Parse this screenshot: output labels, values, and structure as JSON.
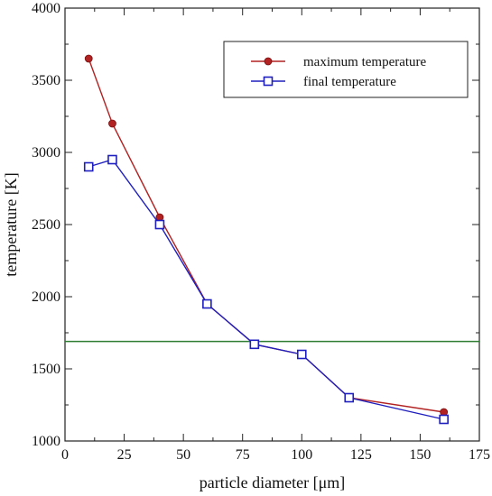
{
  "chart_data": {
    "type": "line",
    "title": "",
    "xlabel": "particle diameter [μm]",
    "ylabel": "temperature [K]",
    "xlim": [
      0,
      175
    ],
    "ylim": [
      1000,
      4000
    ],
    "x_ticks": [
      0,
      25,
      50,
      75,
      100,
      125,
      150,
      175
    ],
    "y_ticks": [
      1000,
      1500,
      2000,
      2500,
      3000,
      3500,
      4000
    ],
    "grid": false,
    "legend_position": "top-right",
    "series": [
      {
        "name": "maximum temperature",
        "marker": "filled-circle",
        "color": "#b22222",
        "x": [
          10,
          20,
          40,
          60,
          80,
          100,
          120,
          160
        ],
        "y": [
          3650,
          3200,
          2550,
          1950,
          1670,
          1600,
          1300,
          1200
        ]
      },
      {
        "name": "final temperature",
        "marker": "open-square",
        "color": "#1f1fbf",
        "x": [
          10,
          20,
          40,
          60,
          80,
          100,
          120,
          160
        ],
        "y": [
          2900,
          2950,
          2500,
          1950,
          1670,
          1600,
          1300,
          1150
        ]
      }
    ],
    "reference_lines": [
      {
        "orientation": "horizontal",
        "y": 1690,
        "color": "#2e7d32"
      }
    ]
  }
}
